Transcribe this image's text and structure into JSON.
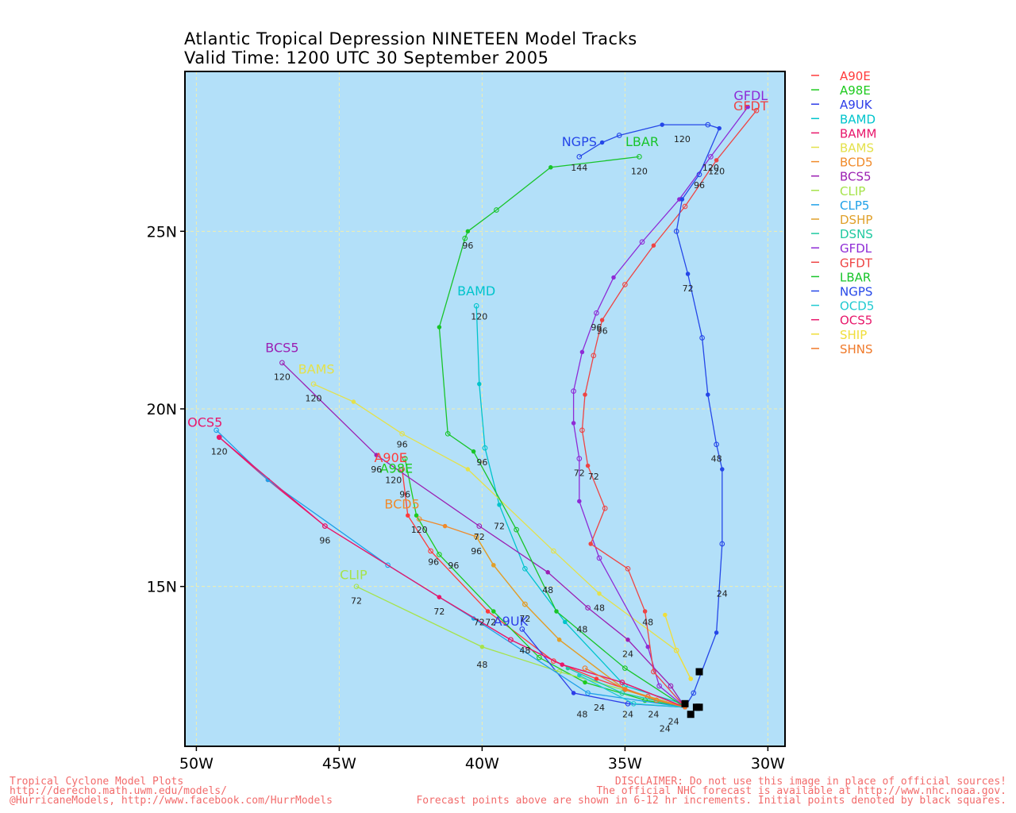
{
  "title_line1": "Atlantic Tropical Depression NINETEEN Model Tracks",
  "title_line2": "Valid Time: 1200 UTC 30 September 2005",
  "footer": {
    "left1": "Tropical Cyclone Model Plots",
    "left2": "http://derecho.math.uwm.edu/models/",
    "left3": "@HurricaneModels, http://www.facebook.com/HurrModels",
    "right1": "DISCLAIMER: Do not use this image in place of official sources!",
    "right2": "The official NHC forecast is available at http://www.nhc.noaa.gov.",
    "right3": "Forecast points above are shown in 6-12 hr increments. Initial points denoted by black squares."
  },
  "colors": {
    "ocean": "#b3e0f9",
    "grid": "#f0eeb0",
    "footer": "#f26b6b"
  },
  "chart_data": {
    "type": "scatter",
    "x_unit": "longitude (deg W, plotted as negative)",
    "y_unit": "latitude (deg N)",
    "xlim": [
      -50.4,
      -29.4
    ],
    "ylim": [
      10.5,
      29.5
    ],
    "x_ticks": [
      -50,
      -45,
      -40,
      -35,
      -30
    ],
    "x_tick_labels": [
      "50W",
      "45W",
      "40W",
      "35W",
      "30W"
    ],
    "y_ticks": [
      15,
      20,
      25
    ],
    "y_tick_labels": [
      "15N",
      "20N",
      "25N"
    ],
    "grid": true,
    "legend_position": "right",
    "initial_points": [
      [
        -32.5,
        11.6
      ],
      [
        -32.4,
        11.6
      ],
      [
        -32.7,
        11.4
      ],
      [
        -32.9,
        11.7
      ],
      [
        -32.4,
        12.6
      ]
    ],
    "series": [
      {
        "name": "A90E",
        "color": "#ff3b3b",
        "marker": "dot",
        "points": [
          [
            -32.9,
            11.6
          ],
          [
            -34.2,
            11.9
          ],
          [
            -36.0,
            12.4
          ],
          [
            -37.5,
            12.9
          ],
          [
            -39.8,
            14.3
          ],
          [
            -41.8,
            16.0
          ],
          [
            -42.6,
            17.0
          ],
          [
            -42.8,
            18.3
          ]
        ],
        "hour_labels": [],
        "label": "A90E",
        "label_at": [
          -43.2,
          18.5
        ]
      },
      {
        "name": "A98E",
        "color": "#1ecb1e",
        "marker": "dot",
        "points": [
          [
            -32.9,
            11.6
          ],
          [
            -34.3,
            11.8
          ],
          [
            -36.4,
            12.3
          ],
          [
            -38.0,
            13.0
          ],
          [
            -39.6,
            14.3
          ],
          [
            -41.5,
            15.9
          ],
          [
            -42.3,
            17.0
          ],
          [
            -42.7,
            18.6
          ]
        ],
        "hour_labels": [],
        "label": "A98E",
        "label_at": [
          -43.0,
          18.2
        ]
      },
      {
        "name": "A9UK",
        "color": "#2d3de8",
        "marker": "dot",
        "points": [
          [
            -32.9,
            11.6
          ],
          [
            -34.9,
            11.7
          ],
          [
            -36.8,
            12.0
          ],
          [
            -38.6,
            13.8
          ]
        ],
        "hour_labels": [],
        "label": "A9UK",
        "label_at": [
          -39.0,
          13.9
        ]
      },
      {
        "name": "BAMD",
        "color": "#00c4cc",
        "marker": "dot",
        "points": [
          [
            -33.0,
            11.7
          ],
          [
            -35.0,
            12.2
          ],
          [
            -37.1,
            14.0
          ],
          [
            -38.5,
            15.5
          ],
          [
            -39.4,
            17.3
          ],
          [
            -39.9,
            18.9
          ],
          [
            -40.1,
            20.7
          ],
          [
            -40.2,
            22.9
          ]
        ],
        "hour_labels": [
          [
            -36.5,
            13.8,
            "48"
          ],
          [
            -39.4,
            16.7,
            "72"
          ],
          [
            -40.0,
            18.5,
            "96"
          ],
          [
            -40.1,
            22.6,
            "120"
          ]
        ],
        "label": "BAMD",
        "label_at": [
          -40.2,
          23.2
        ]
      },
      {
        "name": "BAMM",
        "color": "#e8176b",
        "marker": "dot",
        "points": [
          [
            -32.9,
            11.6
          ],
          [
            -35.1,
            12.3
          ],
          [
            -37.2,
            12.8
          ],
          [
            -39.0,
            13.5
          ],
          [
            -41.5,
            14.7
          ],
          [
            -45.5,
            16.7
          ],
          [
            -47.5,
            18.0
          ],
          [
            -49.2,
            19.2
          ]
        ],
        "hour_labels": [
          [
            -41.5,
            14.3,
            "72"
          ],
          [
            -45.5,
            16.3,
            "96"
          ],
          [
            -49.2,
            18.8,
            "120"
          ]
        ],
        "label": "OCS5",
        "label_at": [
          -49.7,
          19.5
        ]
      },
      {
        "name": "BAMS",
        "color": "#e4e14a",
        "marker": "dot",
        "points": [
          [
            -32.7,
            12.4
          ],
          [
            -33.2,
            13.2
          ],
          [
            -35.9,
            14.8
          ],
          [
            -37.5,
            16.0
          ],
          [
            -40.5,
            18.3
          ],
          [
            -42.8,
            19.3
          ],
          [
            -44.5,
            20.2
          ],
          [
            -45.9,
            20.7
          ]
        ],
        "hour_labels": [
          [
            -35.9,
            14.4,
            "48"
          ],
          [
            -42.8,
            19.0,
            "96"
          ],
          [
            -45.9,
            20.3,
            "120"
          ]
        ],
        "label": "BAMS",
        "label_at": [
          -45.8,
          21.0
        ]
      },
      {
        "name": "BCD5",
        "color": "#f08a2a",
        "marker": "dot",
        "points": [
          [
            -32.9,
            11.6
          ],
          [
            -35.0,
            12.1
          ],
          [
            -37.3,
            13.5
          ],
          [
            -38.5,
            14.5
          ],
          [
            -39.6,
            15.6
          ],
          [
            -40.2,
            16.4
          ],
          [
            -41.3,
            16.7
          ],
          [
            -42.2,
            16.9
          ]
        ],
        "hour_labels": [
          [
            -38.5,
            14.1,
            "72"
          ],
          [
            -40.2,
            16.0,
            "96"
          ],
          [
            -42.2,
            16.6,
            "120"
          ]
        ],
        "label": "BCD5",
        "label_at": [
          -42.8,
          17.2
        ]
      },
      {
        "name": "BCS5",
        "color": "#9b1fb2",
        "marker": "dot",
        "points": [
          [
            -32.9,
            11.6
          ],
          [
            -33.4,
            12.2
          ],
          [
            -34.9,
            13.5
          ],
          [
            -36.3,
            14.4
          ],
          [
            -37.7,
            15.4
          ],
          [
            -40.1,
            16.7
          ],
          [
            -43.7,
            18.7
          ],
          [
            -47.0,
            21.3
          ]
        ],
        "hour_labels": [
          [
            -34.9,
            13.1,
            "24"
          ],
          [
            -37.7,
            14.9,
            "48"
          ],
          [
            -40.1,
            16.4,
            "72"
          ],
          [
            -43.7,
            18.3,
            "96"
          ],
          [
            -47.0,
            20.9,
            "120"
          ]
        ],
        "label": "BCS5",
        "label_at": [
          -47.0,
          21.6
        ]
      },
      {
        "name": "CLIP",
        "color": "#a6e34a",
        "marker": "dot",
        "points": [
          [
            -32.9,
            11.6
          ],
          [
            -37.3,
            12.6
          ],
          [
            -40.0,
            13.3
          ],
          [
            -44.4,
            15.0
          ]
        ],
        "hour_labels": [
          [
            -40.0,
            12.8,
            "48"
          ],
          [
            -44.4,
            14.6,
            "72"
          ]
        ],
        "label": "CLIP",
        "label_at": [
          -44.5,
          15.2
        ]
      },
      {
        "name": "CLP5",
        "color": "#1ea0e8",
        "marker": "dot",
        "points": [
          [
            -32.9,
            11.6
          ],
          [
            -36.3,
            12.0
          ],
          [
            -40.3,
            14.1
          ],
          [
            -43.3,
            15.6
          ],
          [
            -47.5,
            18.0
          ],
          [
            -49.3,
            19.4
          ]
        ],
        "hour_labels": [],
        "label": "",
        "label_at": null
      },
      {
        "name": "DSHP",
        "color": "#e0a02a",
        "marker": "dot",
        "points": [
          [
            -32.9,
            11.6
          ],
          [
            -35.0,
            12.1
          ],
          [
            -37.3,
            13.5
          ],
          [
            -38.5,
            14.5
          ],
          [
            -39.6,
            15.6
          ],
          [
            -40.2,
            16.4
          ]
        ],
        "hour_labels": [],
        "label": "",
        "label_at": null
      },
      {
        "name": "DSNS",
        "color": "#1fc9a0",
        "marker": "dot",
        "points": [
          [
            -32.9,
            11.6
          ],
          [
            -35.1,
            12.0
          ],
          [
            -37.0,
            12.7
          ]
        ],
        "hour_labels": [],
        "label": "",
        "label_at": null
      },
      {
        "name": "GFDL",
        "color": "#8e2bd6",
        "marker": "dot",
        "points": [
          [
            -32.9,
            11.6
          ],
          [
            -33.8,
            12.2
          ],
          [
            -34.2,
            13.3
          ],
          [
            -35.9,
            15.8
          ],
          [
            -36.6,
            17.4
          ],
          [
            -36.6,
            18.6
          ],
          [
            -36.8,
            19.6
          ],
          [
            -36.8,
            20.5
          ],
          [
            -36.5,
            21.6
          ],
          [
            -36.0,
            22.7
          ],
          [
            -35.4,
            23.7
          ],
          [
            -34.4,
            24.7
          ],
          [
            -33.1,
            25.9
          ],
          [
            -32.0,
            27.1
          ],
          [
            -30.7,
            28.5
          ]
        ],
        "hour_labels": [
          [
            -36.6,
            18.2,
            "72"
          ],
          [
            -36.0,
            22.3,
            "96"
          ],
          [
            -32.0,
            26.8,
            "120"
          ]
        ],
        "label": "GFDL",
        "label_at": [
          -30.6,
          28.7
        ]
      },
      {
        "name": "GFDT",
        "color": "#ee4444",
        "marker": "dot",
        "points": [
          [
            -32.9,
            11.6
          ],
          [
            -34.0,
            12.6
          ],
          [
            -34.3,
            14.3
          ],
          [
            -34.9,
            15.5
          ],
          [
            -36.2,
            16.2
          ],
          [
            -35.7,
            17.2
          ],
          [
            -36.3,
            18.4
          ],
          [
            -36.5,
            19.4
          ],
          [
            -36.4,
            20.4
          ],
          [
            -36.1,
            21.5
          ],
          [
            -35.8,
            22.5
          ],
          [
            -35.0,
            23.5
          ],
          [
            -34.0,
            24.6
          ],
          [
            -32.9,
            25.7
          ],
          [
            -31.8,
            27.0
          ],
          [
            -30.4,
            28.4
          ]
        ],
        "hour_labels": [
          [
            -34.2,
            14.0,
            "48"
          ],
          [
            -36.1,
            18.1,
            "72"
          ],
          [
            -35.8,
            22.2,
            "96"
          ],
          [
            -31.8,
            26.7,
            "120"
          ]
        ],
        "label": "GFDT",
        "label_at": [
          -30.6,
          28.4
        ]
      },
      {
        "name": "LBAR",
        "color": "#18c42a",
        "marker": "dot",
        "points": [
          [
            -32.9,
            11.6
          ],
          [
            -35.0,
            12.7
          ],
          [
            -37.4,
            14.3
          ],
          [
            -38.8,
            16.6
          ],
          [
            -40.3,
            18.8
          ],
          [
            -41.2,
            19.3
          ],
          [
            -41.5,
            22.3
          ],
          [
            -40.6,
            24.8
          ],
          [
            -40.5,
            25.0
          ],
          [
            -39.5,
            25.6
          ],
          [
            -37.6,
            26.8
          ],
          [
            -34.5,
            27.1
          ]
        ],
        "hour_labels": [
          [
            -40.5,
            24.6,
            "96"
          ],
          [
            -34.5,
            26.7,
            "120"
          ]
        ],
        "label": "LBAR",
        "label_at": [
          -34.4,
          27.4
        ]
      },
      {
        "name": "NGPS",
        "color": "#2547e8",
        "marker": "dot",
        "points": [
          [
            -32.9,
            11.6
          ],
          [
            -32.6,
            12.0
          ],
          [
            -31.8,
            13.7
          ],
          [
            -31.6,
            16.2
          ],
          [
            -31.6,
            18.3
          ],
          [
            -31.8,
            19.0
          ],
          [
            -32.1,
            20.4
          ],
          [
            -32.3,
            22.0
          ],
          [
            -32.8,
            23.8
          ],
          [
            -33.2,
            25.0
          ],
          [
            -33.0,
            25.9
          ],
          [
            -32.4,
            26.6
          ],
          [
            -31.7,
            27.9
          ],
          [
            -32.1,
            28.0
          ],
          [
            -33.7,
            28.0
          ],
          [
            -35.2,
            27.7
          ],
          [
            -35.8,
            27.5
          ],
          [
            -36.6,
            27.1
          ]
        ],
        "hour_labels": [
          [
            -31.6,
            14.8,
            "24"
          ],
          [
            -31.8,
            18.6,
            "48"
          ],
          [
            -32.8,
            23.4,
            "72"
          ],
          [
            -32.4,
            26.3,
            "96"
          ],
          [
            -33.0,
            27.6,
            "120"
          ],
          [
            -36.6,
            26.8,
            "144"
          ]
        ],
        "label": "NGPS",
        "label_at": [
          -36.6,
          27.4
        ]
      },
      {
        "name": "OCD5",
        "color": "#20cad1",
        "marker": "dot",
        "points": [
          [
            -32.9,
            11.6
          ],
          [
            -34.7,
            11.7
          ],
          [
            -36.6,
            12.5
          ]
        ],
        "hour_labels": [],
        "label": "",
        "label_at": null
      },
      {
        "name": "OCS5",
        "color": "#e8186b",
        "marker": "dot",
        "points": [
          [
            -32.9,
            11.6
          ],
          [
            -35.1,
            12.3
          ],
          [
            -37.2,
            12.8
          ],
          [
            -39.0,
            13.5
          ],
          [
            -41.5,
            14.7
          ],
          [
            -45.5,
            16.7
          ],
          [
            -49.2,
            19.2
          ]
        ],
        "hour_labels": [],
        "label": "",
        "label_at": null
      },
      {
        "name": "SHIP",
        "color": "#f0de3a",
        "marker": "dot",
        "points": [
          [
            -32.7,
            12.4
          ],
          [
            -33.2,
            13.2
          ],
          [
            -33.6,
            14.2
          ]
        ],
        "hour_labels": [],
        "label": "",
        "label_at": null
      },
      {
        "name": "SHNS",
        "color": "#f07a2a",
        "marker": "dot",
        "points": [
          [
            -32.9,
            11.6
          ],
          [
            -33.9,
            11.8
          ],
          [
            -35.0,
            12.1
          ],
          [
            -36.4,
            12.7
          ]
        ],
        "hour_labels": [],
        "label": "",
        "label_at": null
      }
    ],
    "extra_hour_labels": [
      [
        -34.0,
        11.4,
        "24"
      ],
      [
        -34.9,
        11.4,
        "24"
      ],
      [
        -33.3,
        11.2,
        "24"
      ],
      [
        -33.6,
        11.0,
        "24"
      ],
      [
        -35.9,
        11.6,
        "24"
      ],
      [
        -36.5,
        11.4,
        "48"
      ],
      [
        -38.5,
        13.2,
        "48"
      ],
      [
        -40.1,
        14.0,
        "72"
      ],
      [
        -39.7,
        14.0,
        "72"
      ],
      [
        -41.7,
        15.7,
        "96"
      ],
      [
        -41.0,
        15.6,
        "96"
      ],
      [
        -43.1,
        18.0,
        "120"
      ],
      [
        -42.7,
        17.6,
        "96"
      ]
    ]
  }
}
